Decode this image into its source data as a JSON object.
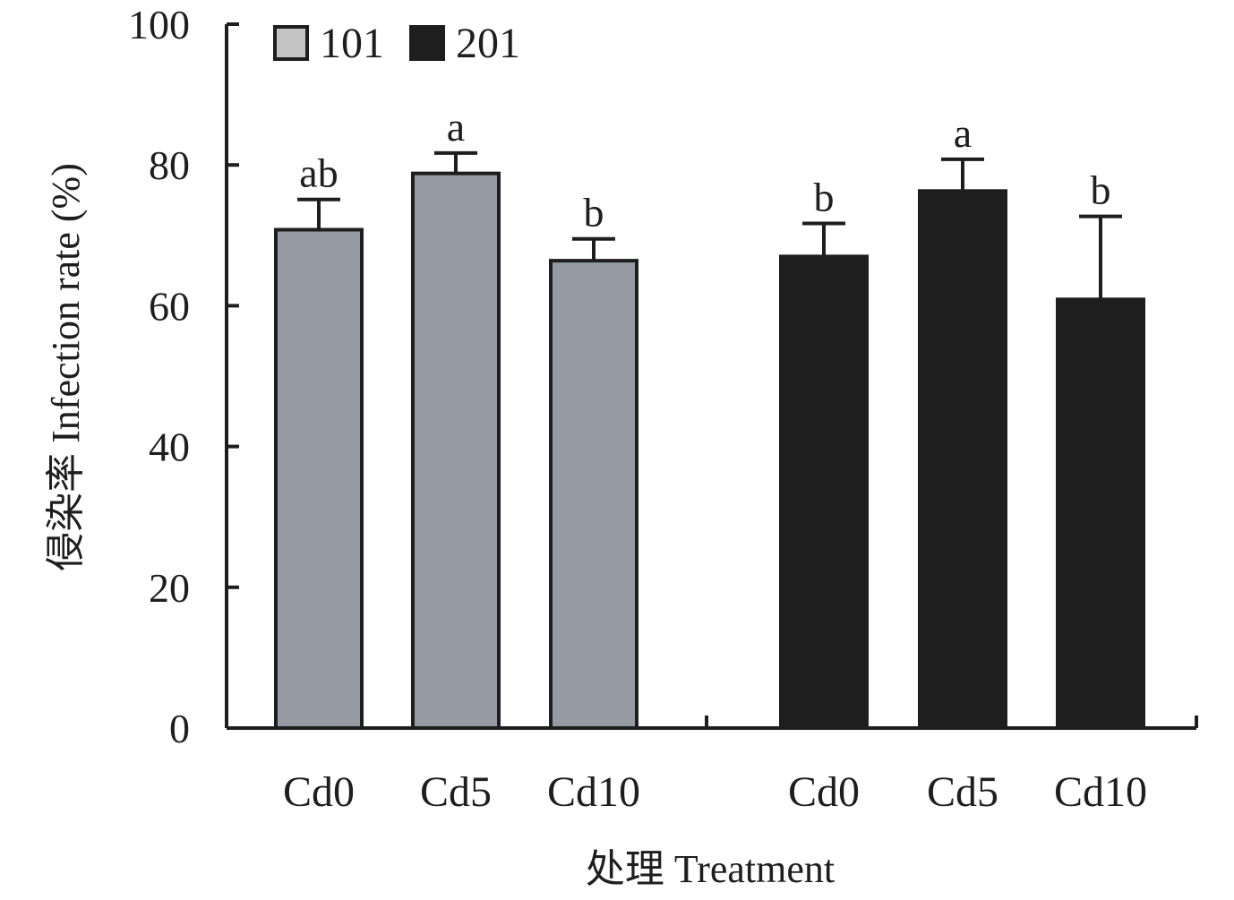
{
  "chart_data": {
    "type": "bar",
    "xlabel": "处理 Treatment",
    "ylabel": "侵染率 Infection rate (%)",
    "ylim": [
      0,
      100
    ],
    "yticks": [
      0,
      20,
      40,
      60,
      80,
      100
    ],
    "legend_position": "top-left",
    "groups": [
      {
        "name": "101",
        "color": "#959aa3",
        "categories": [
          "Cd0",
          "Cd5",
          "Cd10"
        ],
        "values": [
          70.8,
          78.8,
          66.4
        ],
        "errors": [
          4.3,
          2.9,
          3.1
        ],
        "labels": [
          "ab",
          "a",
          "b"
        ]
      },
      {
        "name": "201",
        "color": "#1e1e1e",
        "categories": [
          "Cd0",
          "Cd5",
          "Cd10"
        ],
        "values": [
          67.0,
          76.3,
          60.9
        ],
        "errors": [
          4.7,
          4.5,
          11.8
        ],
        "labels": [
          "b",
          "a",
          "b"
        ]
      }
    ]
  }
}
